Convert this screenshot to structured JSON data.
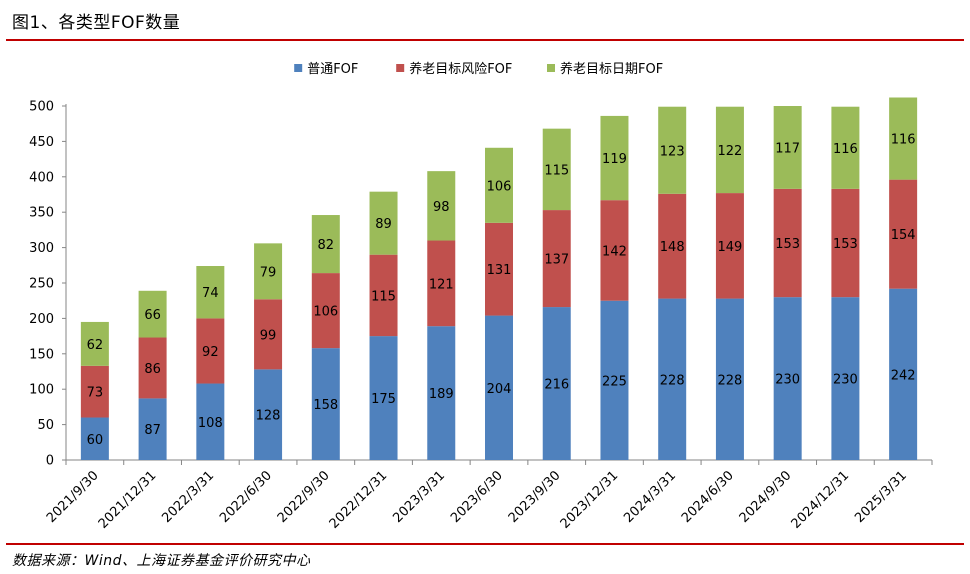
{
  "header": {
    "title": "图1、各类型FOF数量"
  },
  "footer": {
    "source": "数据来源：Wind、上海证券基金评价研究中心"
  },
  "chart_data": {
    "type": "bar",
    "stacked": true,
    "title": "图1、各类型FOF数量",
    "xlabel": "",
    "ylabel": "",
    "ylim": [
      0,
      500
    ],
    "yticks": [
      0,
      50,
      100,
      150,
      200,
      250,
      300,
      350,
      400,
      450,
      500
    ],
    "grid": false,
    "legend_position": "top-center",
    "categories": [
      "2021/9/30",
      "2021/12/31",
      "2022/3/31",
      "2022/6/30",
      "2022/9/30",
      "2022/12/31",
      "2023/3/31",
      "2023/6/30",
      "2023/9/30",
      "2023/12/31",
      "2024/3/31",
      "2024/6/30",
      "2024/9/30",
      "2024/12/31",
      "2025/3/31"
    ],
    "series": [
      {
        "name": "普通FOF",
        "color": "#4f81bd",
        "values": [
          60,
          87,
          108,
          128,
          158,
          175,
          189,
          204,
          216,
          225,
          228,
          228,
          230,
          230,
          242
        ]
      },
      {
        "name": "养老目标风险FOF",
        "color": "#c0504d",
        "values": [
          73,
          86,
          92,
          99,
          106,
          115,
          121,
          131,
          137,
          142,
          148,
          149,
          153,
          153,
          154
        ]
      },
      {
        "name": "养老目标日期FOF",
        "color": "#9bbb59",
        "values": [
          62,
          66,
          74,
          79,
          82,
          89,
          98,
          106,
          115,
          119,
          123,
          122,
          117,
          116,
          116
        ]
      }
    ]
  }
}
